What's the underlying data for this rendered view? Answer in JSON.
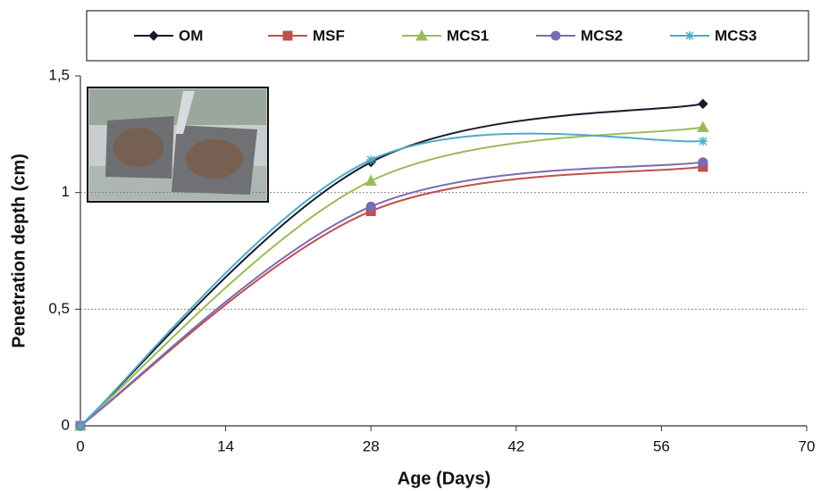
{
  "chart_data": {
    "type": "line",
    "x_label": "Age (Days)",
    "y_label": "Penetration depth (cm)",
    "x": [
      0,
      28,
      60
    ],
    "series": [
      {
        "name": "OM",
        "color": "#1a1a2e",
        "marker": "diamond",
        "values": [
          0,
          1.13,
          1.38
        ]
      },
      {
        "name": "MSF",
        "color": "#c0504d",
        "marker": "square",
        "values": [
          0,
          0.92,
          1.11
        ]
      },
      {
        "name": "MCS1",
        "color": "#9bbb59",
        "marker": "triangle",
        "values": [
          0,
          1.05,
          1.28
        ]
      },
      {
        "name": "MCS2",
        "color": "#7a6bb3",
        "marker": "circle",
        "values": [
          0,
          0.94,
          1.13
        ]
      },
      {
        "name": "MCS3",
        "color": "#4bacc6",
        "marker": "star",
        "values": [
          0,
          1.14,
          1.22
        ]
      }
    ],
    "xlim": [
      0,
      70
    ],
    "xticks": [
      0,
      14,
      28,
      42,
      56,
      70
    ],
    "ylim": [
      0,
      1.5
    ],
    "yticks": [
      0,
      {
        "value": 0.5,
        "label": "0,5"
      },
      1,
      {
        "value": 1.5,
        "label": "1,5"
      }
    ],
    "grid": true,
    "smooth": true,
    "legend": "top"
  }
}
